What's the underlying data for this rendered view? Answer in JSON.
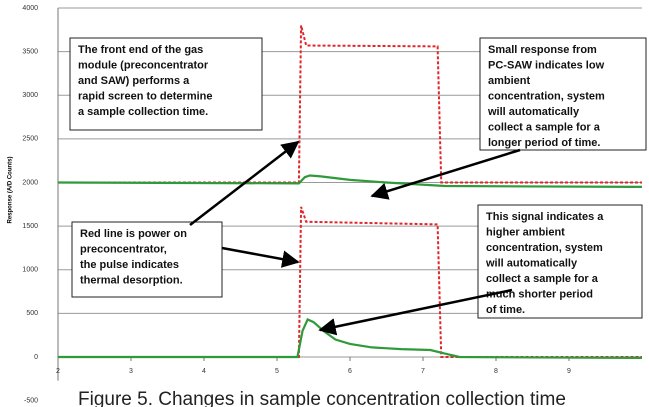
{
  "chart_data": {
    "type": "line",
    "title": "Figure 5. Changes in sample concentration collection time",
    "y_label": "Response (A/D Counts)",
    "xlim": [
      2,
      10
    ],
    "xticks": [
      2,
      3,
      4,
      5,
      6,
      7,
      8,
      9
    ],
    "ylim": [
      -500,
      4000
    ],
    "yticks": [
      -500,
      0,
      500,
      1000,
      1500,
      2000,
      2500,
      3000,
      3500,
      4000
    ],
    "grid": true,
    "series": [
      {
        "color": "#e0262b",
        "dash": true,
        "x": [
          2,
          5.3,
          5.33,
          5.4,
          7.2,
          7.25,
          10
        ],
        "values": [
          2000,
          2000,
          3800,
          3570,
          3560,
          2000,
          2000
        ]
      },
      {
        "color": "#2e9a3a",
        "dash": false,
        "x": [
          2,
          5.3,
          5.38,
          5.45,
          5.6,
          6.0,
          6.5,
          7.3,
          8.5,
          10
        ],
        "values": [
          2000,
          1990,
          2060,
          2080,
          2070,
          2030,
          2000,
          1960,
          1955,
          1950
        ]
      },
      {
        "color": "#e0262b",
        "dash": true,
        "x": [
          2,
          5.3,
          5.33,
          5.4,
          7.2,
          7.25,
          10
        ],
        "values": [
          0,
          0,
          1720,
          1550,
          1520,
          0,
          0
        ]
      },
      {
        "color": "#2e9a3a",
        "dash": false,
        "x": [
          2,
          5.28,
          5.35,
          5.42,
          5.5,
          5.65,
          5.8,
          6.0,
          6.3,
          6.7,
          7.1,
          7.3,
          7.5,
          8.5,
          10
        ],
        "values": [
          0,
          0,
          300,
          430,
          400,
          290,
          200,
          150,
          110,
          90,
          80,
          40,
          0,
          -5,
          -10
        ]
      }
    ],
    "annotations": [
      {
        "lines": [
          "The front end of the gas",
          "module (preconcentrator",
          "and SAW) performs a",
          "rapid screen to determine",
          "a sample collection time."
        ]
      },
      {
        "lines": [
          "Small response from",
          "PC-SAW indicates low",
          "ambient",
          "concentration, system",
          "will automatically",
          "collect a sample for a",
          "longer period of time."
        ]
      },
      {
        "lines": [
          "Red line is power on",
          "preconcentrator,",
          "the pulse indicates",
          "thermal desorption."
        ]
      },
      {
        "lines": [
          "This signal indicates a",
          "higher ambient",
          "concentration, system",
          "will automatically",
          "collect a sample for a",
          "much shorter period",
          "of time."
        ]
      }
    ]
  }
}
